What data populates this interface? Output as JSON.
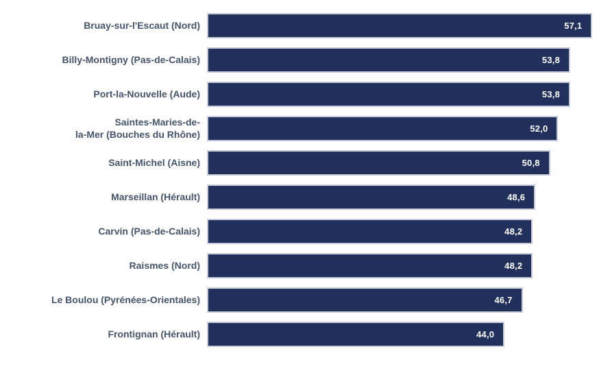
{
  "chart_data": {
    "type": "bar",
    "orientation": "horizontal",
    "title": "",
    "xlabel": "",
    "ylabel": "",
    "grid": false,
    "legend": false,
    "xlim": [
      0,
      58.5
    ],
    "categories": [
      "Bruay-sur-l'Escaut (Nord)",
      "Billy-Montigny (Pas-de-Calais)",
      "Port-la-Nouvelle (Aude)",
      "Saintes-Maries-de-\nla-Mer (Bouches du Rhône)",
      "Saint-Michel (Aisne)",
      "Marseillan (Hérault)",
      "Carvin (Pas-de-Calais)",
      "Raismes (Nord)",
      "Le Boulou (Pyrénées-Orientales)",
      "Frontignan (Hérault)"
    ],
    "values": [
      57.1,
      53.8,
      53.8,
      52.0,
      50.8,
      48.6,
      48.2,
      48.2,
      46.7,
      44.0
    ],
    "value_labels": [
      "57,1",
      "53,8",
      "53,8",
      "52,0",
      "50,8",
      "48,6",
      "48,2",
      "48,2",
      "46,7",
      "44,0"
    ],
    "colors": {
      "bar_fill": "#22315B",
      "bar_border": "#c7cad9",
      "category_text": "#44546A",
      "value_text": "#FFFFFF",
      "background": "#FFFFFF"
    }
  }
}
